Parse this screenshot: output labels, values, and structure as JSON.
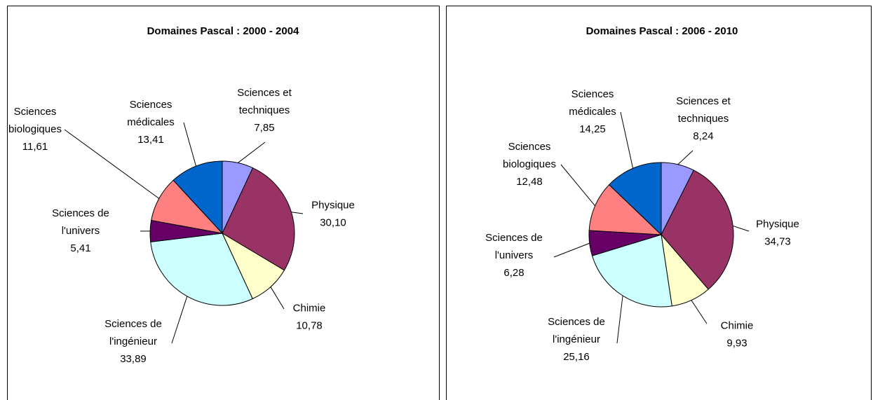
{
  "chart_data": [
    {
      "type": "pie",
      "title": "Domaines Pascal : 2000 - 2004",
      "categories": [
        "Sciences et techniques",
        "Physique",
        "Chimie",
        "Sciences de l'ingénieur",
        "Sciences de l'univers",
        "Sciences biologiques",
        "Sciences médicales"
      ],
      "values": [
        7.85,
        30.1,
        10.78,
        33.89,
        5.41,
        11.61,
        13.41
      ],
      "value_labels": [
        "7,85",
        "30,10",
        "10,78",
        "33,89",
        "5,41",
        "11,61",
        "13,41"
      ],
      "colors": [
        "#9999ff",
        "#993366",
        "#ffffcc",
        "#ccffff",
        "#660066",
        "#ff8080",
        "#0066cc"
      ]
    },
    {
      "type": "pie",
      "title": "Domaines Pascal : 2006 - 2010",
      "categories": [
        "Sciences et techniques",
        "Physique",
        "Chimie",
        "Sciences de l'ingénieur",
        "Sciences de l'univers",
        "Sciences biologiques",
        "Sciences médicales"
      ],
      "values": [
        8.24,
        34.73,
        9.93,
        25.16,
        6.28,
        12.48,
        14.25
      ],
      "value_labels": [
        "8,24",
        "34,73",
        "9,93",
        "25,16",
        "6,28",
        "12,48",
        "14,25"
      ],
      "colors": [
        "#9999ff",
        "#993366",
        "#ffffcc",
        "#ccffff",
        "#660066",
        "#ff8080",
        "#0066cc"
      ]
    }
  ]
}
